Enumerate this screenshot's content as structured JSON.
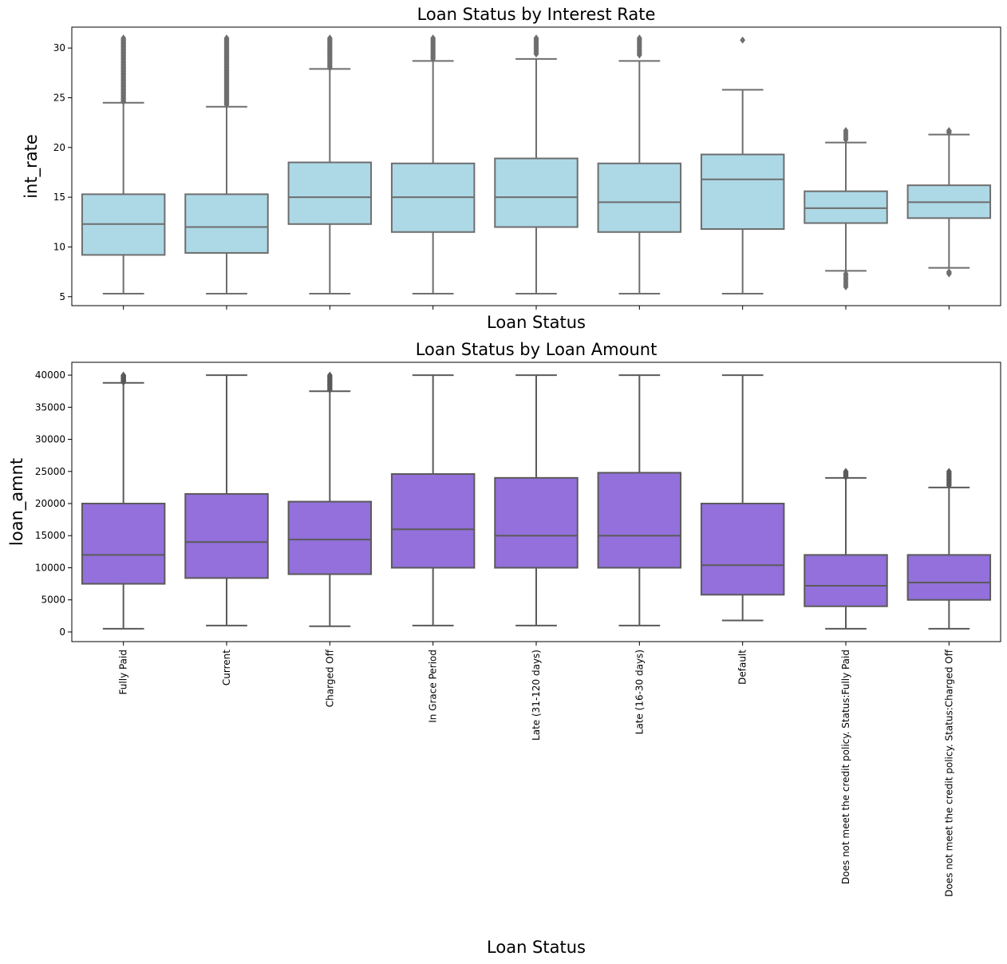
{
  "chart_data": [
    {
      "type": "box",
      "title": "Loan Status by Interest Rate",
      "xlabel": "Loan Status",
      "ylabel": "int_rate",
      "ylim": [
        4.1,
        32.1
      ],
      "yticks": [
        5,
        10,
        15,
        20,
        25,
        30
      ],
      "box_color": "#add8e6",
      "edge_color": "#6e6e6e",
      "show_xtick_labels": false,
      "categories": [
        "Fully Paid",
        "Current",
        "Charged Off",
        "In Grace Period",
        "Late (31-120 days)",
        "Late (16-30 days)",
        "Default",
        "Does not meet the credit policy. Status:Fully Paid",
        "Does not meet the credit policy. Status:Charged Off"
      ],
      "boxes": [
        {
          "whisker_low": 5.3,
          "q1": 9.2,
          "median": 12.3,
          "q3": 15.3,
          "whisker_high": 24.5,
          "outliers_from": 24.6,
          "outliers_to": 31.0,
          "outlier_count": 60
        },
        {
          "whisker_low": 5.3,
          "q1": 9.4,
          "median": 12.0,
          "q3": 15.3,
          "whisker_high": 24.1,
          "outliers_from": 24.3,
          "outliers_to": 31.0,
          "outlier_count": 60
        },
        {
          "whisker_low": 5.3,
          "q1": 12.3,
          "median": 15.0,
          "q3": 18.5,
          "whisker_high": 27.9,
          "outliers_from": 28.0,
          "outliers_to": 31.0,
          "outlier_count": 25
        },
        {
          "whisker_low": 5.3,
          "q1": 11.5,
          "median": 15.0,
          "q3": 18.4,
          "whisker_high": 28.7,
          "outliers_from": 28.9,
          "outliers_to": 31.0,
          "outlier_count": 15
        },
        {
          "whisker_low": 5.3,
          "q1": 12.0,
          "median": 15.0,
          "q3": 18.9,
          "whisker_high": 28.9,
          "outliers_from": 29.4,
          "outliers_to": 31.0,
          "outlier_count": 12
        },
        {
          "whisker_low": 5.3,
          "q1": 11.5,
          "median": 14.5,
          "q3": 18.4,
          "whisker_high": 28.7,
          "outliers_from": 29.3,
          "outliers_to": 31.0,
          "outlier_count": 12
        },
        {
          "whisker_low": 5.3,
          "q1": 11.8,
          "median": 16.8,
          "q3": 19.3,
          "whisker_high": 25.8,
          "outliers_from": 30.8,
          "outliers_to": 30.8,
          "outlier_count": 1
        },
        {
          "whisker_low": 7.6,
          "q1": 12.4,
          "median": 13.9,
          "q3": 15.6,
          "whisker_high": 20.5,
          "outliers_from": 20.8,
          "outliers_to": 21.7,
          "outlier_count": 6,
          "outliers_low_from": 6.0,
          "outliers_low_to": 7.3,
          "outlier_low_count": 8
        },
        {
          "whisker_low": 7.9,
          "q1": 12.9,
          "median": 14.5,
          "q3": 16.2,
          "whisker_high": 21.3,
          "outliers_from": 21.5,
          "outliers_to": 21.7,
          "outlier_count": 3,
          "outliers_low_from": 7.3,
          "outliers_low_to": 7.5,
          "outlier_low_count": 3
        }
      ]
    },
    {
      "type": "box",
      "title": "Loan Status by Loan Amount",
      "xlabel": "Loan Status",
      "ylabel": "loan_amnt",
      "ylim": [
        -1500,
        42000
      ],
      "yticks": [
        0,
        5000,
        10000,
        15000,
        20000,
        25000,
        30000,
        35000,
        40000
      ],
      "box_color": "#9370db",
      "edge_color": "#5a5a5a",
      "show_xtick_labels": true,
      "categories": [
        "Fully Paid",
        "Current",
        "Charged Off",
        "In Grace Period",
        "Late (31-120 days)",
        "Late (16-30 days)",
        "Default",
        "Does not meet the credit policy. Status:Fully Paid",
        "Does not meet the credit policy. Status:Charged Off"
      ],
      "boxes": [
        {
          "whisker_low": 500,
          "q1": 7500,
          "median": 12000,
          "q3": 20000,
          "whisker_high": 38800,
          "outliers_from": 38900,
          "outliers_to": 40000,
          "outlier_count": 14
        },
        {
          "whisker_low": 1000,
          "q1": 8400,
          "median": 14000,
          "q3": 21500,
          "whisker_high": 40000,
          "outlier_count": 0
        },
        {
          "whisker_low": 900,
          "q1": 9000,
          "median": 14400,
          "q3": 20300,
          "whisker_high": 37500,
          "outliers_from": 37700,
          "outliers_to": 40000,
          "outlier_count": 16
        },
        {
          "whisker_low": 1000,
          "q1": 10000,
          "median": 16000,
          "q3": 24600,
          "whisker_high": 40000,
          "outlier_count": 0
        },
        {
          "whisker_low": 1000,
          "q1": 10000,
          "median": 15000,
          "q3": 24000,
          "whisker_high": 40000,
          "outlier_count": 0
        },
        {
          "whisker_low": 1000,
          "q1": 10000,
          "median": 15000,
          "q3": 24800,
          "whisker_high": 40000,
          "outlier_count": 0
        },
        {
          "whisker_low": 1800,
          "q1": 5800,
          "median": 10400,
          "q3": 20000,
          "whisker_high": 40000,
          "outlier_count": 0
        },
        {
          "whisker_low": 500,
          "q1": 4000,
          "median": 7200,
          "q3": 12000,
          "whisker_high": 24000,
          "outliers_from": 24100,
          "outliers_to": 25000,
          "outlier_count": 8
        },
        {
          "whisker_low": 500,
          "q1": 5000,
          "median": 7700,
          "q3": 12000,
          "whisker_high": 22500,
          "outliers_from": 22800,
          "outliers_to": 25000,
          "outlier_count": 14
        }
      ]
    }
  ]
}
